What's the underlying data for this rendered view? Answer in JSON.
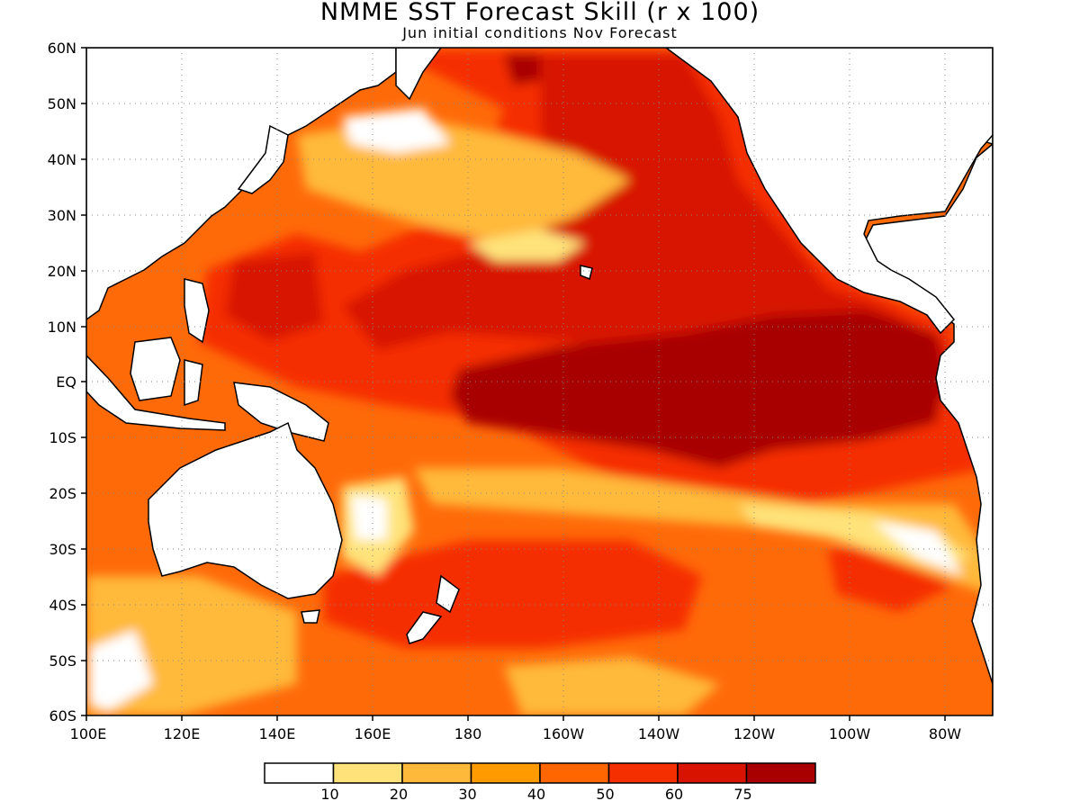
{
  "title": "NMME SST Forecast Skill (r x 100)",
  "subtitle": "Jun initial conditions  Nov Forecast",
  "map": {
    "lon_range": [
      100,
      290
    ],
    "lat_range": [
      -60,
      60
    ],
    "lat_labels": [
      "60N",
      "50N",
      "40N",
      "30N",
      "20N",
      "10N",
      "EQ",
      "10S",
      "20S",
      "30S",
      "40S",
      "50S",
      "60S"
    ],
    "lon_labels": [
      "100E",
      "120E",
      "140E",
      "160E",
      "180",
      "160W",
      "140W",
      "120W",
      "100W",
      "80W"
    ],
    "grid": "dotted",
    "land_color": "#ffffff"
  },
  "colorbar": {
    "colors": [
      "#ffffff",
      "#ffe37a",
      "#ffb93a",
      "#ff9b00",
      "#ff6600",
      "#f52f00",
      "#d81400",
      "#a80000"
    ],
    "labels": [
      "10",
      "20",
      "30",
      "40",
      "50",
      "60",
      "75"
    ]
  }
}
